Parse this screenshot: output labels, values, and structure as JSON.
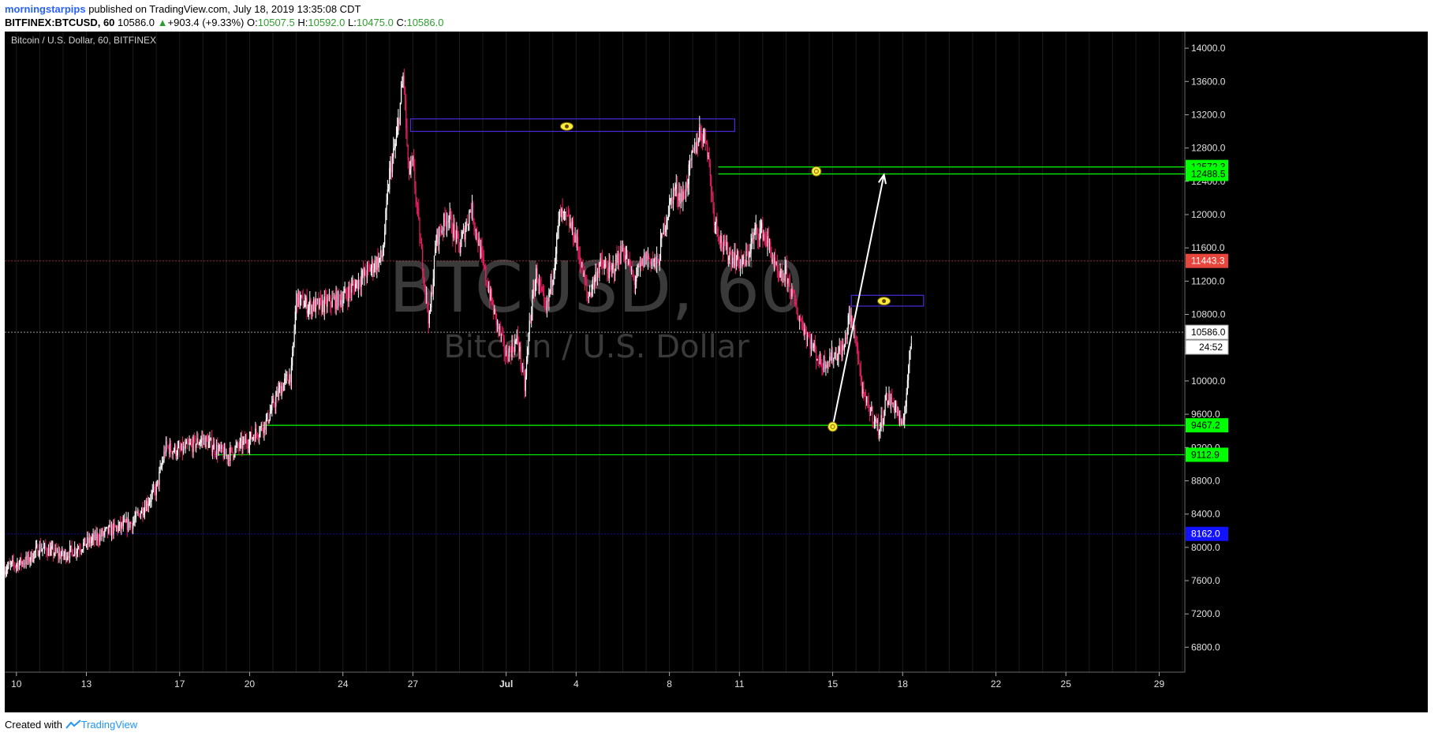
{
  "header": {
    "author": "morningstarpips",
    "published": "published on TradingView.com, July 18, 2019 13:35:08 CDT",
    "symbol_interval": "BITFINEX:BTCUSD, 60",
    "last": "10586.0",
    "change": "+903.4 (+9.33%)",
    "open_label": "O:",
    "open": "10507.5",
    "high_label": "H:",
    "high": "10592.0",
    "low_label": "L:",
    "low": "10475.0",
    "close_label": "C:",
    "close": "10586.0"
  },
  "chart_title": "Bitcoin / U.S. Dollar, 60, BITFINEX",
  "watermark": {
    "line1": "BTCUSD, 60",
    "line2": "Bitcoin / U.S. Dollar"
  },
  "footer": {
    "created_with": "Created with",
    "brand": "TradingView"
  },
  "colors": {
    "background": "#000000",
    "up": "#ffffff",
    "down": "#e91e63",
    "support": "#00ff00",
    "box": "#4b2bd6",
    "marker": "#ffeb3b",
    "current_badge": "#ef5350",
    "blue_badge": "#1212ff"
  },
  "chart_data": {
    "type": "candlestick",
    "title": "Bitcoin / U.S. Dollar, 60, BITFINEX",
    "ylim": [
      6500,
      14200
    ],
    "y_ticks": [
      "14000.0",
      "13600.0",
      "13200.0",
      "12800.0",
      "12400.0",
      "12000.0",
      "11600.0",
      "11200.0",
      "10800.0",
      "10400.0",
      "10000.0",
      "9600.0",
      "9200.0",
      "8800.0",
      "8400.0",
      "8000.0",
      "7600.0",
      "7200.0",
      "6800.0"
    ],
    "x_ticks": [
      {
        "label": "10",
        "day": 10
      },
      {
        "label": "13",
        "day": 13
      },
      {
        "label": "17",
        "day": 17
      },
      {
        "label": "20",
        "day": 20
      },
      {
        "label": "24",
        "day": 24
      },
      {
        "label": "27",
        "day": 27
      },
      {
        "label": "Jul",
        "day": 31
      },
      {
        "label": "4",
        "day": 34
      },
      {
        "label": "8",
        "day": 38
      },
      {
        "label": "11",
        "day": 41
      },
      {
        "label": "15",
        "day": 45
      },
      {
        "label": "18",
        "day": 48
      },
      {
        "label": "22",
        "day": 52
      },
      {
        "label": "25",
        "day": 55
      },
      {
        "label": "29",
        "day": 59
      }
    ],
    "xlim": [
      9.5,
      60.1
    ],
    "price_path": [
      [
        9.5,
        7750
      ],
      [
        10.5,
        7850
      ],
      [
        11.0,
        8000
      ],
      [
        12.0,
        7900
      ],
      [
        13.0,
        8050
      ],
      [
        14.0,
        8200
      ],
      [
        15.0,
        8300
      ],
      [
        16.0,
        8700
      ],
      [
        16.4,
        9200
      ],
      [
        17.0,
        9150
      ],
      [
        18.0,
        9300
      ],
      [
        19.0,
        9100
      ],
      [
        20.0,
        9300
      ],
      [
        20.7,
        9500
      ],
      [
        21.3,
        9900
      ],
      [
        21.8,
        10100
      ],
      [
        22.0,
        11000
      ],
      [
        22.5,
        10900
      ],
      [
        23.0,
        10900
      ],
      [
        24.0,
        11000
      ],
      [
        25.0,
        11300
      ],
      [
        25.7,
        11500
      ],
      [
        26.0,
        12500
      ],
      [
        26.3,
        12900
      ],
      [
        26.6,
        13700
      ],
      [
        26.8,
        12500
      ],
      [
        27.0,
        12600
      ],
      [
        27.3,
        11700
      ],
      [
        27.7,
        10700
      ],
      [
        28.0,
        11700
      ],
      [
        28.5,
        12000
      ],
      [
        29.0,
        11600
      ],
      [
        29.5,
        12100
      ],
      [
        30.0,
        11400
      ],
      [
        30.5,
        10800
      ],
      [
        31.0,
        10300
      ],
      [
        31.5,
        10500
      ],
      [
        31.8,
        9900
      ],
      [
        32.0,
        10700
      ],
      [
        32.3,
        11300
      ],
      [
        32.7,
        10800
      ],
      [
        33.0,
        11300
      ],
      [
        33.3,
        12000
      ],
      [
        33.7,
        11900
      ],
      [
        34.0,
        11700
      ],
      [
        34.5,
        11000
      ],
      [
        35.0,
        11400
      ],
      [
        35.5,
        11300
      ],
      [
        36.0,
        11600
      ],
      [
        36.5,
        11200
      ],
      [
        37.0,
        11500
      ],
      [
        37.5,
        11400
      ],
      [
        37.8,
        11900
      ],
      [
        38.2,
        12300
      ],
      [
        38.6,
        12200
      ],
      [
        39.0,
        12700
      ],
      [
        39.3,
        13000
      ],
      [
        39.6,
        12900
      ],
      [
        39.9,
        12000
      ],
      [
        40.3,
        11600
      ],
      [
        40.7,
        11500
      ],
      [
        41.2,
        11400
      ],
      [
        41.7,
        11800
      ],
      [
        42.0,
        11800
      ],
      [
        42.3,
        11600
      ],
      [
        42.7,
        11200
      ],
      [
        43.0,
        11300
      ],
      [
        43.5,
        10800
      ],
      [
        44.0,
        10500
      ],
      [
        44.5,
        10200
      ],
      [
        45.0,
        10300
      ],
      [
        45.5,
        10400
      ],
      [
        45.7,
        10800
      ],
      [
        46.0,
        10500
      ],
      [
        46.3,
        9800
      ],
      [
        46.7,
        9600
      ],
      [
        47.0,
        9400
      ],
      [
        47.3,
        9800
      ],
      [
        47.7,
        9700
      ],
      [
        48.0,
        9400
      ],
      [
        48.2,
        10000
      ],
      [
        48.4,
        10586
      ]
    ],
    "levels": [
      {
        "price": 12572.3,
        "label": "12572.3",
        "color": "#00ff00",
        "from_day": 40.1
      },
      {
        "price": 12488.5,
        "label": "12488.5",
        "color": "#00ff00",
        "from_day": 40.1
      },
      {
        "price": 9467.2,
        "label": "9467.2",
        "color": "#00ff00",
        "from_day": 20.5
      },
      {
        "price": 9112.9,
        "label": "9112.9",
        "color": "#00ff00",
        "from_day": 18.5
      }
    ],
    "boxes": [
      {
        "from_day": 26.9,
        "to_day": 40.8,
        "top": 13150,
        "bottom": 13000
      },
      {
        "from_day": 45.8,
        "to_day": 48.9,
        "top": 11030,
        "bottom": 10900
      }
    ],
    "markers": [
      {
        "day": 33.6,
        "price": 13060,
        "type": "eye"
      },
      {
        "day": 44.3,
        "price": 12520,
        "type": "target"
      },
      {
        "day": 47.2,
        "price": 10960,
        "type": "eye"
      },
      {
        "day": 45.0,
        "price": 9450,
        "type": "target"
      }
    ],
    "arrow": {
      "from": [
        45.0,
        9450
      ],
      "to": [
        47.2,
        12480
      ]
    },
    "dashed_lines": [
      {
        "price": 11443.3,
        "label": "11443.3",
        "color": "#ef5350"
      },
      {
        "price": 10586.0,
        "label": "10586.0",
        "color": "#ffffff"
      },
      {
        "price": 8162.0,
        "label": "8162.0",
        "color": "#1212ff"
      }
    ],
    "countdown": "24:52"
  }
}
